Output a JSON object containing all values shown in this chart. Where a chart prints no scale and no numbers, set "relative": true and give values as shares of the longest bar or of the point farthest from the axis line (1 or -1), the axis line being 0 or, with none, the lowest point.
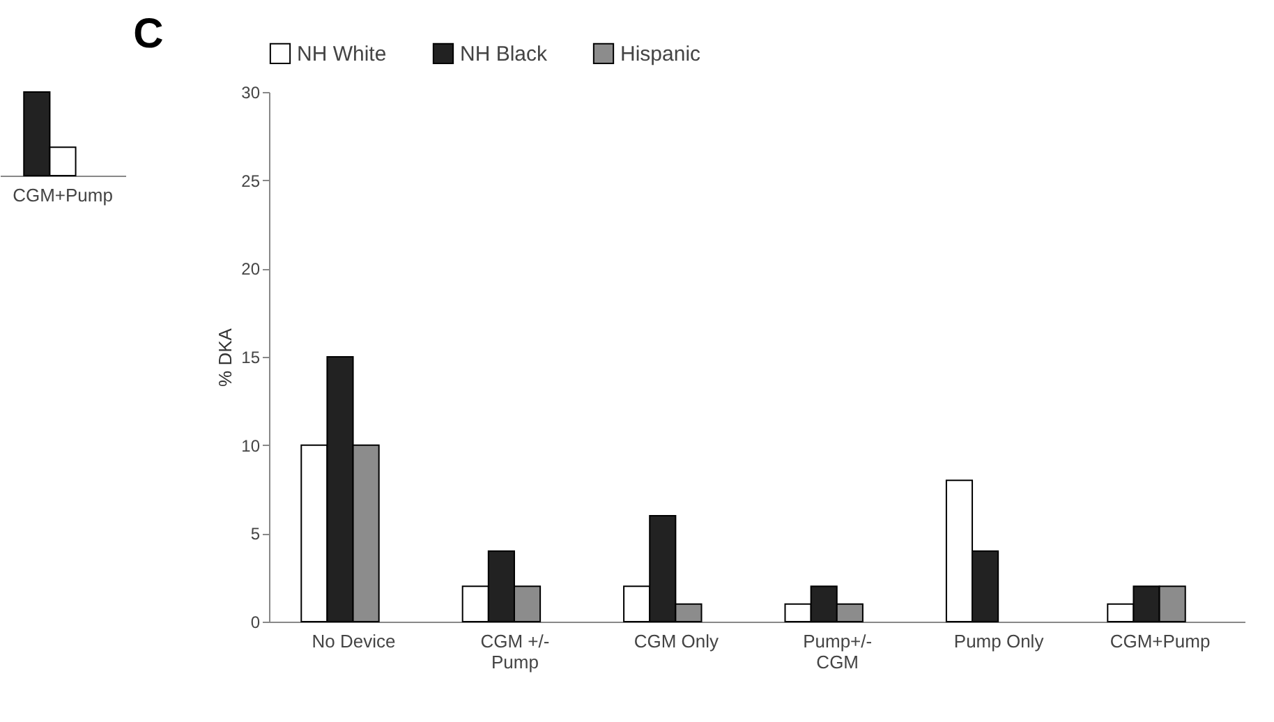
{
  "chart_data": [
    {
      "type": "bar",
      "relative": true,
      "categories": [
        "CGM+Pump"
      ],
      "legend": false,
      "tick_labels": "x",
      "series": [
        {
          "color": "#222222",
          "values": [
            1
          ]
        },
        {
          "color": "#ffffff",
          "values": [
            0.34
          ]
        }
      ]
    },
    {
      "type": "bar",
      "title": "C",
      "ylabel": "% DKA",
      "legend": "top",
      "categories": [
        "No Device",
        "CGM +/-\nPump",
        "CGM Only",
        "Pump+/-\nCGM",
        "Pump Only",
        "CGM+Pump"
      ],
      "ylim": [
        0,
        30
      ],
      "yticks": [
        0,
        5,
        10,
        15,
        20,
        25,
        30
      ],
      "series": [
        {
          "name": "NH White",
          "color": "#ffffff",
          "values": [
            10,
            2,
            2,
            1,
            8,
            1
          ]
        },
        {
          "name": "NH Black",
          "color": "#222222",
          "values": [
            15,
            4,
            6,
            2,
            4,
            2
          ]
        },
        {
          "name": "Hispanic",
          "color": "#8c8c8c",
          "values": [
            10,
            2,
            1,
            1,
            null,
            2
          ]
        }
      ]
    }
  ]
}
